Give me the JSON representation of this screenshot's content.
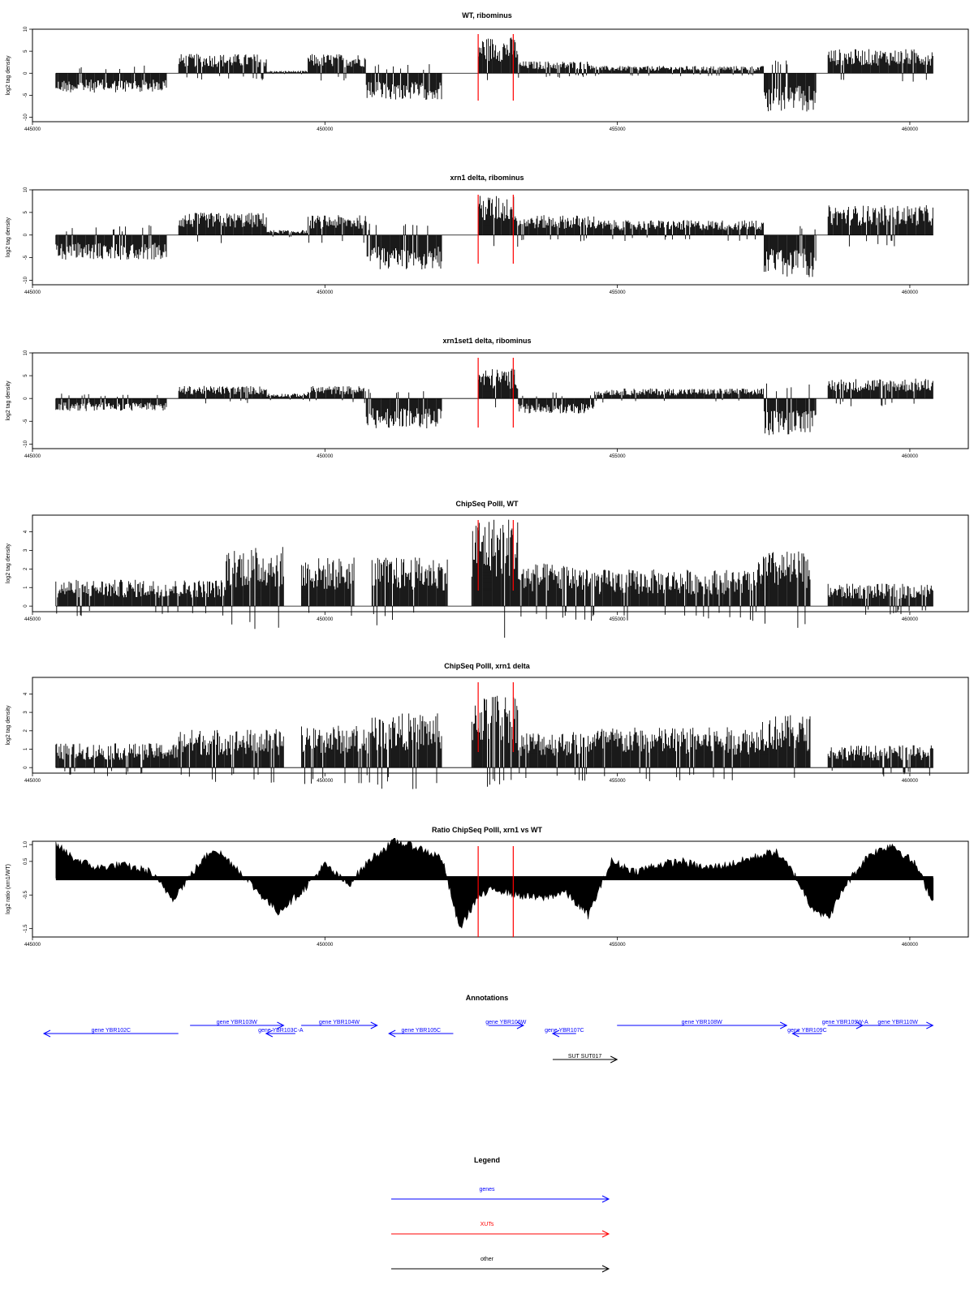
{
  "colors": {
    "genes": "#0000ff",
    "XUTs": "#ff0000",
    "other": "#000000",
    "bars": "#000000",
    "marker": "#ff0000"
  },
  "chart_data": [
    {
      "id": "wt",
      "type": "bar",
      "title": "WT, ribominus",
      "ylabel": "log2 tag density",
      "xlim": [
        445000,
        461000
      ],
      "ylim": [
        -11,
        10
      ],
      "yticks": [
        10,
        5,
        0,
        -5,
        -10
      ],
      "xticks": [
        445000,
        450000,
        455000,
        460000
      ],
      "marker_x": [
        452620,
        453220
      ],
      "data_range": [
        445400,
        460400
      ],
      "profile": [
        {
          "from": 445400,
          "to": 447300,
          "y": -4
        },
        {
          "from": 447300,
          "to": 447500,
          "y": 0
        },
        {
          "from": 447500,
          "to": 449000,
          "y": 4
        },
        {
          "from": 449000,
          "to": 449700,
          "y": 0.5
        },
        {
          "from": 449700,
          "to": 450700,
          "y": 4
        },
        {
          "from": 450700,
          "to": 452000,
          "y": -5.5
        },
        {
          "from": 452000,
          "to": 452620,
          "y": 0
        },
        {
          "from": 452620,
          "to": 453300,
          "y": 7.5
        },
        {
          "from": 453300,
          "to": 454600,
          "y": 2.5
        },
        {
          "from": 454600,
          "to": 457500,
          "y": 1.5
        },
        {
          "from": 457500,
          "to": 458400,
          "y": -8
        },
        {
          "from": 458400,
          "to": 458600,
          "y": 0
        },
        {
          "from": 458600,
          "to": 460400,
          "y": 5
        }
      ]
    },
    {
      "id": "xrn1",
      "type": "bar",
      "title": "xrn1 delta, ribominus",
      "ylabel": "log2 tag density",
      "xlim": [
        445000,
        461000
      ],
      "ylim": [
        -11,
        10
      ],
      "yticks": [
        10,
        5,
        0,
        -5,
        -10
      ],
      "xticks": [
        445000,
        450000,
        455000,
        460000
      ],
      "marker_x": [
        452620,
        453220
      ],
      "data_range": [
        445400,
        460400
      ],
      "profile": [
        {
          "from": 445400,
          "to": 447300,
          "y": -5
        },
        {
          "from": 447300,
          "to": 447500,
          "y": 0
        },
        {
          "from": 447500,
          "to": 449000,
          "y": 4.5
        },
        {
          "from": 449000,
          "to": 449700,
          "y": 1
        },
        {
          "from": 449700,
          "to": 450700,
          "y": 4
        },
        {
          "from": 450700,
          "to": 452000,
          "y": -7
        },
        {
          "from": 452000,
          "to": 452620,
          "y": 0
        },
        {
          "from": 452620,
          "to": 453300,
          "y": 8
        },
        {
          "from": 453300,
          "to": 454600,
          "y": 4
        },
        {
          "from": 454600,
          "to": 457500,
          "y": 3
        },
        {
          "from": 457500,
          "to": 458400,
          "y": -8.5
        },
        {
          "from": 458400,
          "to": 458600,
          "y": 0
        },
        {
          "from": 458600,
          "to": 460400,
          "y": 6
        }
      ]
    },
    {
      "id": "xrn1set1",
      "type": "bar",
      "title": "xrn1set1 delta, ribominus",
      "ylabel": "log2 tag density",
      "xlim": [
        445000,
        461000
      ],
      "ylim": [
        -11,
        10
      ],
      "yticks": [
        10,
        5,
        0,
        -5,
        -10
      ],
      "xticks": [
        445000,
        450000,
        455000,
        460000
      ],
      "marker_x": [
        452620,
        453220
      ],
      "data_range": [
        445400,
        460400
      ],
      "profile": [
        {
          "from": 445400,
          "to": 447300,
          "y": -2.5
        },
        {
          "from": 447300,
          "to": 447500,
          "y": 0
        },
        {
          "from": 447500,
          "to": 449000,
          "y": 2.5
        },
        {
          "from": 449000,
          "to": 449700,
          "y": 1
        },
        {
          "from": 449700,
          "to": 450700,
          "y": 2.5
        },
        {
          "from": 450700,
          "to": 452000,
          "y": -6
        },
        {
          "from": 452000,
          "to": 452620,
          "y": 0
        },
        {
          "from": 452620,
          "to": 453300,
          "y": 6
        },
        {
          "from": 453300,
          "to": 454600,
          "y": -3
        },
        {
          "from": 454600,
          "to": 457500,
          "y": 2
        },
        {
          "from": 457500,
          "to": 458400,
          "y": -7.5
        },
        {
          "from": 458400,
          "to": 458600,
          "y": 0
        },
        {
          "from": 458600,
          "to": 460400,
          "y": 4
        }
      ]
    },
    {
      "id": "chip_wt",
      "type": "bar",
      "title": "ChipSeq PolII, WT",
      "ylabel": "log2 tag density",
      "xlim": [
        445000,
        461000
      ],
      "ylim": [
        -0.3,
        4.9
      ],
      "yticks": [
        0,
        1,
        2,
        3,
        4
      ],
      "xticks": [
        445000,
        450000,
        455000,
        460000
      ],
      "marker_x": [
        452620,
        453220
      ],
      "data_range": [
        445400,
        460400
      ],
      "profile": [
        {
          "from": 445400,
          "to": 448300,
          "y": 1.3
        },
        {
          "from": 448300,
          "to": 449300,
          "y": 2.9
        },
        {
          "from": 449300,
          "to": 449600,
          "y": 0
        },
        {
          "from": 449600,
          "to": 450500,
          "y": 2.4
        },
        {
          "from": 450500,
          "to": 450800,
          "y": 0
        },
        {
          "from": 450800,
          "to": 452100,
          "y": 2.4
        },
        {
          "from": 452100,
          "to": 452500,
          "y": 0
        },
        {
          "from": 452500,
          "to": 453300,
          "y": 4.4
        },
        {
          "from": 453300,
          "to": 454500,
          "y": 2.1
        },
        {
          "from": 454500,
          "to": 457400,
          "y": 1.8
        },
        {
          "from": 457400,
          "to": 458300,
          "y": 2.7
        },
        {
          "from": 458300,
          "to": 458600,
          "y": 0
        },
        {
          "from": 458600,
          "to": 460400,
          "y": 1.1
        }
      ]
    },
    {
      "id": "chip_xrn1",
      "type": "bar",
      "title": "ChipSeq PolII, xrn1 delta",
      "ylabel": "log2 tag density",
      "xlim": [
        445000,
        461000
      ],
      "ylim": [
        -0.3,
        4.9
      ],
      "yticks": [
        0,
        1,
        2,
        3,
        4
      ],
      "xticks": [
        445000,
        450000,
        455000,
        460000
      ],
      "marker_x": [
        452620,
        453220
      ],
      "data_range": [
        445400,
        460400
      ],
      "profile": [
        {
          "from": 445400,
          "to": 447500,
          "y": 1.2
        },
        {
          "from": 447500,
          "to": 449300,
          "y": 1.9
        },
        {
          "from": 449300,
          "to": 449600,
          "y": 0
        },
        {
          "from": 449600,
          "to": 450800,
          "y": 2.1
        },
        {
          "from": 450800,
          "to": 452000,
          "y": 2.7
        },
        {
          "from": 452000,
          "to": 452500,
          "y": 0
        },
        {
          "from": 452500,
          "to": 453300,
          "y": 3.7
        },
        {
          "from": 453300,
          "to": 454500,
          "y": 1.8
        },
        {
          "from": 454500,
          "to": 457400,
          "y": 2.0
        },
        {
          "from": 457400,
          "to": 458300,
          "y": 2.6
        },
        {
          "from": 458300,
          "to": 458600,
          "y": 0
        },
        {
          "from": 458600,
          "to": 460400,
          "y": 1.1
        }
      ]
    },
    {
      "id": "ratio",
      "type": "area",
      "title": "Ratio ChipSeq PolII, xrn1 vs WT",
      "ylabel": "log2 ratio (xrn1/WT)",
      "xlim": [
        445000,
        461000
      ],
      "ylim": [
        -1.75,
        1.1
      ],
      "yticks": [
        1.0,
        0.5,
        -0.5,
        -1.5
      ],
      "ytick_labels": [
        "1.0",
        "0.5",
        "-0.5",
        "-1.5"
      ],
      "xticks": [
        445000,
        450000,
        455000,
        460000
      ],
      "marker_x": [
        452620,
        453220
      ],
      "baseline": 0,
      "x": [
        445400,
        445700,
        446100,
        446500,
        447000,
        447400,
        447800,
        448100,
        448500,
        448800,
        449200,
        449600,
        450000,
        450400,
        450800,
        451200,
        451600,
        452000,
        452300,
        452600,
        452900,
        453300,
        453700,
        454100,
        454500,
        454900,
        455300,
        455700,
        456100,
        456500,
        456900,
        457300,
        457700,
        458000,
        458300,
        458600,
        458900,
        459300,
        459700,
        460100,
        460400
      ],
      "values": [
        1.0,
        0.6,
        0.3,
        0.4,
        0.2,
        -0.6,
        0.3,
        0.9,
        0.3,
        -0.3,
        -1.0,
        -0.4,
        0.4,
        -0.2,
        0.6,
        1.1,
        0.9,
        0.6,
        -1.5,
        -0.6,
        -0.3,
        -0.5,
        -0.6,
        -0.4,
        -1.1,
        0.5,
        0.2,
        0.4,
        0.5,
        0.3,
        0.4,
        0.6,
        0.8,
        0.2,
        -0.8,
        -1.2,
        -0.2,
        0.7,
        1.0,
        0.4,
        -0.7
      ]
    }
  ],
  "annotations": {
    "title": "Annotations",
    "xlim": [
      445000,
      461000
    ],
    "features": [
      {
        "label": "gene YBR102C",
        "start": 447300,
        "end": 445000,
        "row": 1,
        "kind": "genes"
      },
      {
        "label": "gene YBR103W",
        "start": 447500,
        "end": 449100,
        "row": 0,
        "kind": "genes"
      },
      {
        "label": "gene YBR103C-A",
        "start": 449300,
        "end": 448800,
        "row": 1,
        "kind": "genes"
      },
      {
        "label": "gene YBR104W",
        "start": 449400,
        "end": 450700,
        "row": 0,
        "kind": "genes"
      },
      {
        "label": "gene YBR105C",
        "start": 452000,
        "end": 450900,
        "row": 1,
        "kind": "genes"
      },
      {
        "label": "gene YBR106W",
        "start": 452600,
        "end": 453200,
        "row": 0,
        "kind": "genes"
      },
      {
        "label": "gene YBR107C",
        "start": 454100,
        "end": 453700,
        "row": 1,
        "kind": "genes"
      },
      {
        "label": "gene YBR108W",
        "start": 454800,
        "end": 457700,
        "row": 0,
        "kind": "genes"
      },
      {
        "label": "gene YBR109C",
        "start": 458300,
        "end": 457800,
        "row": 1,
        "kind": "genes"
      },
      {
        "label": "gene YBR109W-A",
        "start": 458400,
        "end": 459000,
        "row": 0,
        "kind": "genes"
      },
      {
        "label": "gene YBR110W",
        "start": 459000,
        "end": 460200,
        "row": 0,
        "kind": "genes"
      },
      {
        "label": "SUT SUT017",
        "start": 453700,
        "end": 454800,
        "row": 2,
        "kind": "other"
      }
    ]
  },
  "legend": {
    "title": "Legend",
    "items": [
      {
        "label": "genes",
        "kind": "genes"
      },
      {
        "label": "XUTs",
        "kind": "XUTs"
      },
      {
        "label": "other",
        "kind": "other"
      }
    ]
  }
}
